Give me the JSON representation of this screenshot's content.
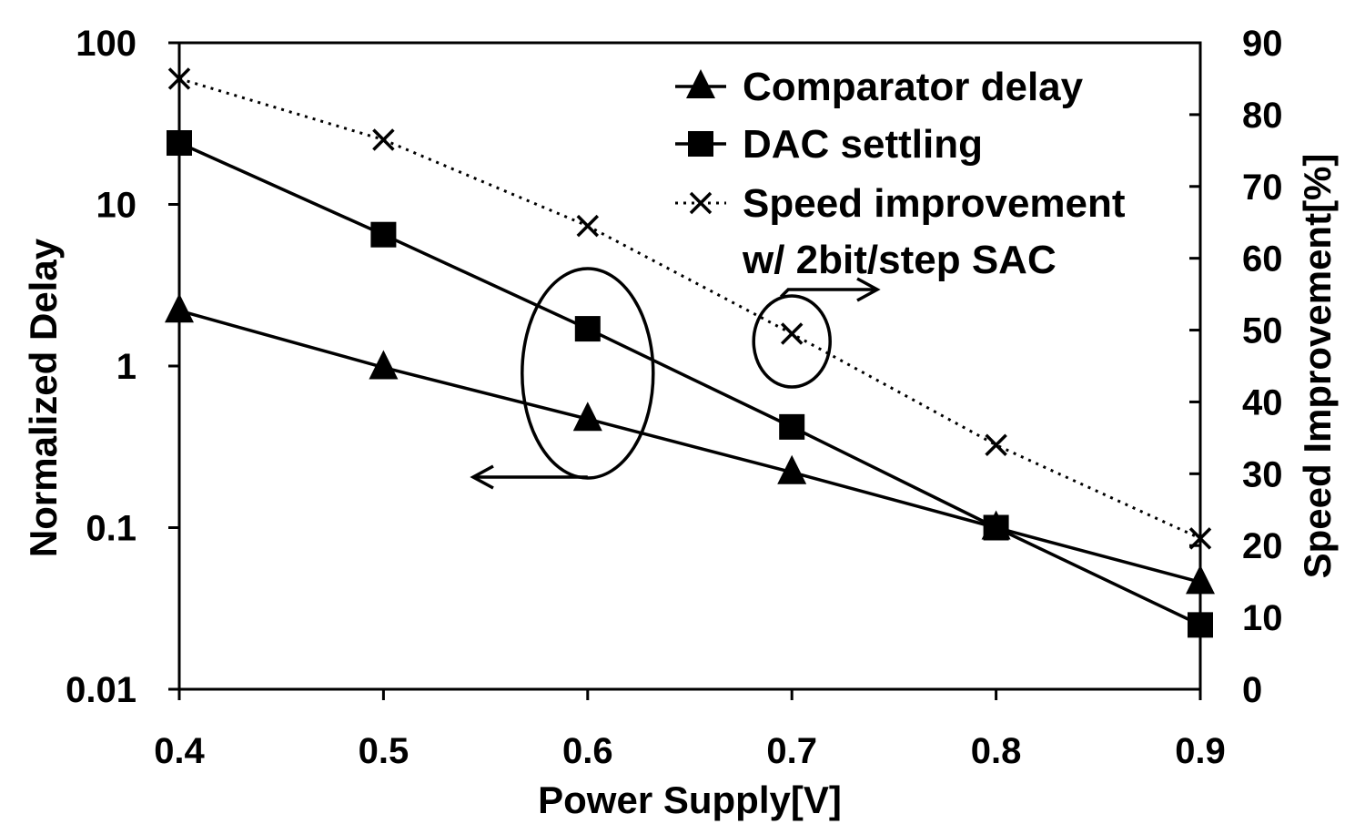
{
  "chart_data": {
    "type": "line",
    "title": "",
    "xlabel": "Power Supply[V]",
    "ylabel_left": "Normalized Delay",
    "ylabel_right": "Speed Improvement[%]",
    "x": [
      0.4,
      0.5,
      0.6,
      0.7,
      0.8,
      0.9
    ],
    "x_tick_labels": [
      "0.4",
      "0.5",
      "0.6",
      "0.7",
      "0.8",
      "0.9"
    ],
    "xlim": [
      0.4,
      0.9
    ],
    "y_left": {
      "scale": "log",
      "lim": [
        0.01,
        100
      ],
      "tick_labels": [
        "0.01",
        "0.1",
        "1",
        "10",
        "100"
      ],
      "ticks": [
        0.01,
        0.1,
        1,
        10,
        100
      ]
    },
    "y_right": {
      "scale": "linear",
      "lim": [
        0,
        90
      ],
      "ticks": [
        0,
        10,
        20,
        30,
        40,
        50,
        60,
        70,
        80,
        90
      ],
      "tick_labels": [
        "0",
        "10",
        "20",
        "30",
        "40",
        "50",
        "60",
        "70",
        "80",
        "90"
      ]
    },
    "series": [
      {
        "name": "Comparator delay",
        "axis": "left",
        "marker": "triangle",
        "line": "solid",
        "values": [
          2.2,
          0.98,
          0.47,
          0.22,
          0.1,
          0.046
        ]
      },
      {
        "name": "DAC settling",
        "axis": "left",
        "marker": "square",
        "line": "solid",
        "values": [
          24,
          6.5,
          1.7,
          0.42,
          0.1,
          0.025
        ]
      },
      {
        "name": "Speed improvement",
        "name_line2": "w/ 2bit/step SAC",
        "axis": "right",
        "marker": "x",
        "line": "dotted",
        "values": [
          85,
          76.5,
          64.5,
          49.5,
          34,
          21
        ]
      }
    ],
    "annotations": [
      {
        "type": "ellipse-arrow",
        "target": "left-axis",
        "x": 0.6,
        "direction": "left"
      },
      {
        "type": "ellipse-arrow",
        "target": "right-axis",
        "x": 0.7,
        "direction": "right"
      }
    ],
    "grid": false,
    "legend_position": "top-right",
    "colors": {
      "line": "#000000",
      "background": "#ffffff"
    }
  }
}
